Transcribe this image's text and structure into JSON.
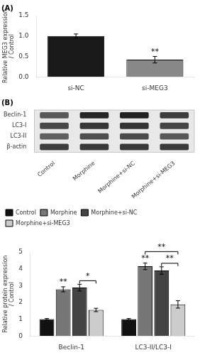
{
  "chart_data": [
    {
      "type": "bar",
      "title": "(A)",
      "categories": [
        "si-NC",
        "si-MEG3"
      ],
      "values": [
        1.0,
        0.42
      ],
      "errors": [
        0.05,
        0.08
      ],
      "colors": [
        "#1a1a1a",
        "#888888"
      ],
      "ylabel": "Relative MEG3 expression\n/ Control",
      "ylim": [
        0,
        1.5
      ],
      "yticks": [
        {
          "value": 0,
          "label": "0.0"
        },
        0.5,
        {
          "value": 1,
          "label": "1.0"
        },
        1.5
      ],
      "grid": false,
      "annotations": [
        {
          "text": "**",
          "category": "si-MEG3"
        }
      ]
    },
    {
      "type": "heatmap",
      "title": "(B)",
      "x": [
        "Control",
        "Morphine",
        "Morphine+si-NC",
        "Morphine+si-MEG3"
      ],
      "y": [
        "Beclin-1",
        "LC3-I",
        "LC3-II",
        "β-actin"
      ],
      "cells": [
        [
          0.4,
          0.85,
          0.88,
          0.65
        ],
        [
          0.55,
          0.7,
          0.72,
          0.58
        ],
        [
          0.35,
          0.5,
          0.52,
          0.4
        ],
        [
          0.65,
          0.68,
          0.68,
          0.66
        ]
      ],
      "grid": false
    },
    {
      "type": "bar",
      "categories": [
        "Beclin-1",
        "LC3-II/LC3-I"
      ],
      "series": [
        {
          "name": "Control",
          "color": "#111111",
          "values": [
            1.0,
            1.0
          ],
          "errors": [
            0.04,
            0.04
          ]
        },
        {
          "name": "Morphine",
          "color": "#777777",
          "values": [
            2.78,
            4.15
          ],
          "errors": [
            0.15,
            0.2
          ]
        },
        {
          "name": "Morphine+si-NC",
          "color": "#444444",
          "values": [
            2.88,
            3.9
          ],
          "errors": [
            0.2,
            0.22
          ]
        },
        {
          "name": "Morphine+si-MEG3",
          "color": "#cccccc",
          "values": [
            1.55,
            1.88
          ],
          "errors": [
            0.1,
            0.22
          ]
        }
      ],
      "ylabel": "Relative protein expression\n/ Control",
      "ylim": [
        0,
        5
      ],
      "yticks": [
        0,
        1,
        2,
        3,
        4,
        5
      ],
      "grid": false,
      "legend": "upper left",
      "annotations": [
        {
          "text": "**",
          "category": "Beclin-1",
          "series": "Morphine"
        },
        {
          "text": "*",
          "category": "Beclin-1",
          "from": "Morphine+si-NC",
          "to": "Morphine+si-MEG3"
        },
        {
          "text": "**",
          "category": "LC3-II/LC3-I",
          "series": "Morphine"
        },
        {
          "text": "**",
          "category": "LC3-II/LC3-I",
          "from": "Morphine",
          "to": "Morphine+si-MEG3"
        },
        {
          "text": "**",
          "category": "LC3-II/LC3-I",
          "from": "Morphine+si-NC",
          "to": "Morphine+si-MEG3"
        }
      ]
    }
  ]
}
